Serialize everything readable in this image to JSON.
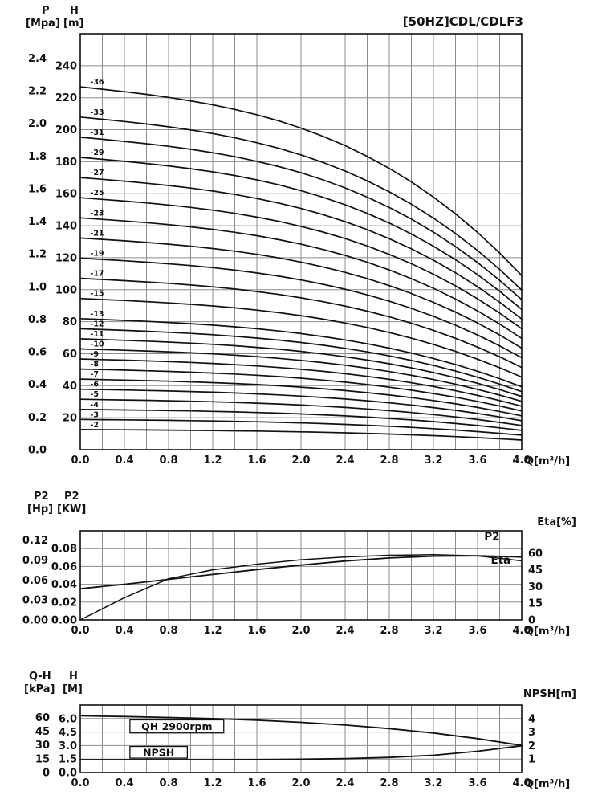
{
  "page": {
    "bg": "#ffffff",
    "fg": "#111111",
    "grid": "#8c8c8c"
  },
  "chart_data": [
    {
      "id": "head-capacity",
      "type": "line",
      "title": "[50HZ]CDL/CDLF3",
      "xlabel": "Q[m³/h]",
      "x_range": [
        0,
        4
      ],
      "x_grid_step": 0.2,
      "x_tick_labels": [
        "0.0",
        "0.4",
        "0.8",
        "1.2",
        "1.6",
        "2.0",
        "2.4",
        "2.8",
        "3.2",
        "3.6",
        "4.0"
      ],
      "axes": {
        "left_outer": {
          "name": "P",
          "unit": "[Mpa]",
          "ticks": [
            "0.0",
            "0.2",
            "0.4",
            "0.6",
            "0.8",
            "1.0",
            "1.2",
            "1.4",
            "1.6",
            "1.8",
            "2.0",
            "2.2",
            "2.4"
          ],
          "m_per_mpa": 101.97
        },
        "left_inner": {
          "name": "H",
          "unit": "[m]",
          "ticks": [
            "20",
            "40",
            "60",
            "80",
            "100",
            "120",
            "140",
            "160",
            "180",
            "200",
            "220",
            "240"
          ],
          "range": [
            0,
            260
          ]
        }
      },
      "q": [
        0,
        0.2,
        0.4,
        0.6,
        0.8,
        1.0,
        1.2,
        1.4,
        1.6,
        1.8,
        2.0,
        2.2,
        2.4,
        2.6,
        2.8,
        3.0,
        3.2,
        3.4,
        3.6,
        3.8,
        4.0
      ],
      "head_shape": [
        1.0,
        0.9935,
        0.9866,
        0.9792,
        0.9709,
        0.9614,
        0.9505,
        0.9378,
        0.923,
        0.906,
        0.8863,
        0.8636,
        0.8378,
        0.8084,
        0.7752,
        0.738,
        0.6963,
        0.65,
        0.5987,
        0.5421,
        0.48
      ],
      "curves": [
        {
          "label": "-36",
          "stages": 36,
          "shutoff_head_m": 226.8
        },
        {
          "label": "-33",
          "stages": 33,
          "shutoff_head_m": 207.9
        },
        {
          "label": "-31",
          "stages": 31,
          "shutoff_head_m": 195.3
        },
        {
          "label": "-29",
          "stages": 29,
          "shutoff_head_m": 182.7
        },
        {
          "label": "-27",
          "stages": 27,
          "shutoff_head_m": 170.1
        },
        {
          "label": "-25",
          "stages": 25,
          "shutoff_head_m": 157.5
        },
        {
          "label": "-23",
          "stages": 23,
          "shutoff_head_m": 144.9
        },
        {
          "label": "-21",
          "stages": 21,
          "shutoff_head_m": 132.3
        },
        {
          "label": "-19",
          "stages": 19,
          "shutoff_head_m": 119.7
        },
        {
          "label": "-17",
          "stages": 17,
          "shutoff_head_m": 107.1
        },
        {
          "label": "-15",
          "stages": 15,
          "shutoff_head_m": 94.5
        },
        {
          "label": "-13",
          "stages": 13,
          "shutoff_head_m": 81.9
        },
        {
          "label": "-12",
          "stages": 12,
          "shutoff_head_m": 75.6
        },
        {
          "label": "-11",
          "stages": 11,
          "shutoff_head_m": 69.3
        },
        {
          "label": "-10",
          "stages": 10,
          "shutoff_head_m": 63.0
        },
        {
          "label": "-9",
          "stages": 9,
          "shutoff_head_m": 56.7
        },
        {
          "label": "-8",
          "stages": 8,
          "shutoff_head_m": 50.4
        },
        {
          "label": "-7",
          "stages": 7,
          "shutoff_head_m": 44.1
        },
        {
          "label": "-6",
          "stages": 6,
          "shutoff_head_m": 37.8
        },
        {
          "label": "-5",
          "stages": 5,
          "shutoff_head_m": 31.5
        },
        {
          "label": "-4",
          "stages": 4,
          "shutoff_head_m": 25.2
        },
        {
          "label": "-3",
          "stages": 3,
          "shutoff_head_m": 18.9
        },
        {
          "label": "-2",
          "stages": 2,
          "shutoff_head_m": 12.6
        }
      ]
    },
    {
      "id": "power-efficiency",
      "type": "line",
      "xlabel": "Q[m³/h]",
      "x_range": [
        0,
        4
      ],
      "x_grid_step": 0.2,
      "x_tick_labels": [
        "0.0",
        "0.4",
        "0.8",
        "1.2",
        "1.6",
        "2.0",
        "2.4",
        "2.8",
        "3.2",
        "3.6",
        "4.0"
      ],
      "axes": {
        "left_outer": {
          "name": "P2",
          "unit": "[Hp]",
          "ticks": [
            "0.00",
            "0.03",
            "0.06",
            "0.09",
            "0.12"
          ],
          "kw_per_hp": 0.7457
        },
        "left_inner": {
          "name": "P2",
          "unit": "[KW]",
          "ticks": [
            "0.00",
            "0.02",
            "0.04",
            "0.06",
            "0.08"
          ],
          "range": [
            0,
            0.1
          ]
        },
        "right": {
          "label": "Eta[%]",
          "ticks": [
            "0",
            "15",
            "30",
            "45",
            "60"
          ],
          "range": [
            0,
            80
          ]
        }
      },
      "q": [
        0,
        0.4,
        0.8,
        1.2,
        1.6,
        2.0,
        2.4,
        2.8,
        3.2,
        3.6,
        4.0
      ],
      "series": [
        {
          "name": "P2",
          "unit": "KW",
          "values": [
            0.035,
            0.04,
            0.0455,
            0.051,
            0.0565,
            0.0615,
            0.066,
            0.0695,
            0.0715,
            0.072,
            0.0705
          ],
          "label": "P2",
          "label_q": 3.66,
          "label_value": 0.0895
        },
        {
          "name": "Eta",
          "unit": "%",
          "values": [
            0,
            20,
            37,
            45,
            50,
            54,
            56.5,
            58,
            58.5,
            57.5,
            53
          ],
          "label": "Eta",
          "label_q": 3.72,
          "label_value": 50.5
        }
      ]
    },
    {
      "id": "single-stage-qh-npsh",
      "type": "line",
      "xlabel": "Q[m³/h]",
      "x_range": [
        0,
        4
      ],
      "x_grid_step": 0.2,
      "x_tick_labels": [
        "0.0",
        "0.4",
        "0.8",
        "1.2",
        "1.6",
        "2.0",
        "2.4",
        "2.8",
        "3.2",
        "3.6",
        "4.0"
      ],
      "axes": {
        "left_outer": {
          "name": "Q-H",
          "unit": "[kPa]",
          "ticks": [
            "0",
            "15",
            "30",
            "45",
            "60"
          ],
          "kpa_per_m": 9.81
        },
        "left_inner": {
          "name": "H",
          "unit": "[M]",
          "ticks": [
            "0.0",
            "1.5",
            "3.0",
            "4.5",
            "6.0"
          ],
          "range": [
            0,
            7.5
          ]
        },
        "right": {
          "label": "NPSH[m]",
          "ticks": [
            "1",
            "2",
            "3",
            "4"
          ],
          "range": [
            0,
            5
          ]
        }
      },
      "q": [
        0,
        0.4,
        0.8,
        1.2,
        1.6,
        2.0,
        2.4,
        2.8,
        3.2,
        3.6,
        4.0
      ],
      "series": [
        {
          "name": "QH",
          "unit": "M",
          "values": [
            6.3,
            6.22,
            6.12,
            5.99,
            5.82,
            5.58,
            5.28,
            4.88,
            4.39,
            3.77,
            3.02
          ],
          "boxed_label": "QH 2900rpm",
          "box": {
            "q": 0.45,
            "top": 5.85,
            "w": 0.85,
            "h": 1.45
          }
        },
        {
          "name": "NPSH",
          "unit": "m",
          "values": [
            0.95,
            0.95,
            0.95,
            0.95,
            0.96,
            0.99,
            1.03,
            1.12,
            1.28,
            1.58,
            1.98
          ],
          "boxed_label": "NPSH",
          "box": {
            "q": 0.45,
            "top": 2.9,
            "w": 0.52,
            "h": 1.3
          }
        }
      ]
    }
  ]
}
